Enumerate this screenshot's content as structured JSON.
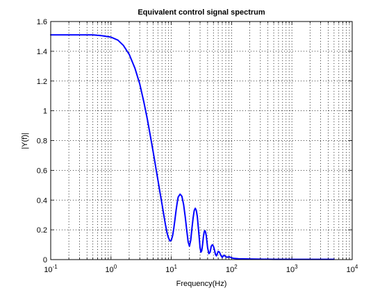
{
  "chart_data": {
    "type": "line",
    "title": "Equivalent control signal spectrum",
    "xlabel": "Frequency(Hz)",
    "ylabel": "|Y(f)|",
    "xscale": "log",
    "xlim": [
      0.1,
      10000
    ],
    "ylim": [
      0,
      1.6
    ],
    "grid": true,
    "legend": "none",
    "x_ticks": [
      {
        "value": 0.1,
        "base": "10",
        "exp": "-1"
      },
      {
        "value": 1,
        "base": "10",
        "exp": "0"
      },
      {
        "value": 10,
        "base": "10",
        "exp": "1"
      },
      {
        "value": 100,
        "base": "10",
        "exp": "2"
      },
      {
        "value": 1000,
        "base": "10",
        "exp": "3"
      },
      {
        "value": 10000,
        "base": "10",
        "exp": "4"
      }
    ],
    "y_ticks": [
      {
        "value": 0,
        "label": "0"
      },
      {
        "value": 0.2,
        "label": "0.2"
      },
      {
        "value": 0.4,
        "label": "0.4"
      },
      {
        "value": 0.6,
        "label": "0.6"
      },
      {
        "value": 0.8,
        "label": "0.8"
      },
      {
        "value": 1.0,
        "label": "1"
      },
      {
        "value": 1.2,
        "label": "1.2"
      },
      {
        "value": 1.4,
        "label": "1.4"
      },
      {
        "value": 1.6,
        "label": "1.6"
      }
    ],
    "series": [
      {
        "color": "#0000ff",
        "x": [
          0.1,
          0.2,
          0.3,
          0.5,
          0.7,
          1.0,
          1.3,
          1.6,
          2.0,
          2.5,
          3.0,
          3.5,
          4.0,
          4.5,
          5.0,
          5.5,
          6.0,
          6.5,
          7.0,
          7.5,
          8.0,
          8.5,
          9.0,
          9.5,
          10.0,
          10.5,
          11.0,
          11.5,
          12.0,
          12.5,
          13.0,
          14.0,
          15.0,
          16.0,
          17.0,
          18.0,
          19.0,
          20.0,
          21.0,
          22.0,
          23.0,
          24.0,
          25.0,
          26.0,
          27.0,
          28.0,
          29.0,
          30.0,
          31.0,
          32.0,
          33.0,
          34.0,
          35.0,
          36.0,
          37.0,
          38.0,
          39.0,
          40.0,
          42.0,
          44.0,
          46.0,
          48.0,
          50.0,
          52.0,
          54.0,
          56.0,
          58.0,
          60.0,
          63.0,
          66.0,
          70.0,
          75.0,
          80.0,
          85.0,
          90.0,
          100.0,
          110.0,
          130.0,
          150.0,
          200.0,
          300.0,
          500.0,
          1000.0,
          2000.0,
          5000.0
        ],
        "y": [
          1.51,
          1.51,
          1.51,
          1.51,
          1.505,
          1.495,
          1.475,
          1.44,
          1.38,
          1.285,
          1.18,
          1.06,
          0.945,
          0.83,
          0.725,
          0.625,
          0.535,
          0.45,
          0.375,
          0.3,
          0.235,
          0.18,
          0.145,
          0.125,
          0.13,
          0.16,
          0.21,
          0.27,
          0.33,
          0.38,
          0.42,
          0.44,
          0.425,
          0.37,
          0.29,
          0.2,
          0.12,
          0.09,
          0.13,
          0.21,
          0.28,
          0.33,
          0.345,
          0.33,
          0.29,
          0.22,
          0.15,
          0.08,
          0.05,
          0.06,
          0.1,
          0.15,
          0.185,
          0.195,
          0.185,
          0.16,
          0.12,
          0.08,
          0.04,
          0.05,
          0.09,
          0.1,
          0.09,
          0.065,
          0.035,
          0.025,
          0.04,
          0.055,
          0.05,
          0.03,
          0.015,
          0.03,
          0.02,
          0.015,
          0.02,
          0.012,
          0.008,
          0.006,
          0.005,
          0.004,
          0.003,
          0.002,
          0.002,
          0.002,
          0.002
        ]
      }
    ]
  }
}
